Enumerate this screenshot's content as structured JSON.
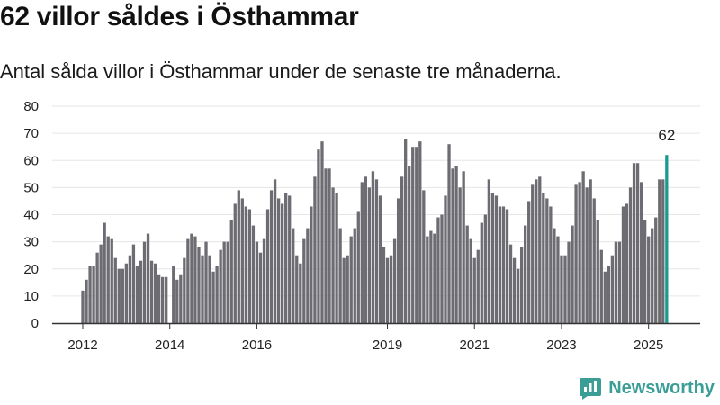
{
  "title": "62 villor såldes i Östhammar",
  "subtitle": "Antal sålda villor i Östhammar under de senaste tre månaderna.",
  "brand": {
    "name": "Newsworthy",
    "icon": "bar-chart-logo-icon"
  },
  "colors": {
    "bar": "#6d6c72",
    "highlight": "#1a9a91",
    "axis": "#333333",
    "grid": "#e6e6e6"
  },
  "chart_data": {
    "type": "bar",
    "title": "",
    "xlabel": "",
    "ylabel": "",
    "ylim": [
      0,
      80
    ],
    "yticks": [
      0,
      10,
      20,
      30,
      40,
      50,
      60,
      70,
      80
    ],
    "grid": true,
    "start_month": "2012-01",
    "xtick_labels": [
      {
        "label": "2012",
        "month": "2012-01"
      },
      {
        "label": "2014",
        "month": "2014-01"
      },
      {
        "label": "2016",
        "month": "2016-01"
      },
      {
        "label": "2019",
        "month": "2019-01"
      },
      {
        "label": "2021",
        "month": "2021-01"
      },
      {
        "label": "2023",
        "month": "2023-01"
      },
      {
        "label": "2025",
        "month": "2025-01"
      }
    ],
    "highlight_label": "62",
    "values": [
      12,
      16,
      21,
      21,
      26,
      29,
      37,
      32,
      31,
      24,
      20,
      20,
      22,
      25,
      29,
      21,
      23,
      30,
      33,
      23,
      22,
      18,
      17,
      17,
      0,
      21,
      16,
      18,
      24,
      31,
      33,
      32,
      28,
      25,
      30,
      25,
      19,
      21,
      27,
      30,
      30,
      38,
      44,
      49,
      46,
      43,
      42,
      36,
      30,
      26,
      31,
      42,
      49,
      53,
      46,
      44,
      48,
      47,
      35,
      25,
      22,
      31,
      35,
      43,
      54,
      64,
      67,
      57,
      57,
      50,
      48,
      35,
      24,
      25,
      32,
      35,
      41,
      52,
      54,
      50,
      56,
      53,
      47,
      28,
      24,
      25,
      31,
      46,
      54,
      68,
      58,
      65,
      65,
      67,
      49,
      32,
      34,
      33,
      39,
      40,
      47,
      66,
      57,
      58,
      50,
      56,
      36,
      31,
      24,
      27,
      37,
      40,
      53,
      48,
      47,
      43,
      43,
      42,
      29,
      24,
      20,
      28,
      36,
      45,
      51,
      53,
      54,
      48,
      46,
      43,
      35,
      32,
      25,
      25,
      30,
      36,
      51,
      52,
      56,
      50,
      53,
      46,
      38,
      27,
      19,
      21,
      25,
      30,
      30,
      43,
      44,
      50,
      59,
      59,
      52,
      38,
      32,
      35,
      39,
      53,
      53,
      62
    ]
  }
}
